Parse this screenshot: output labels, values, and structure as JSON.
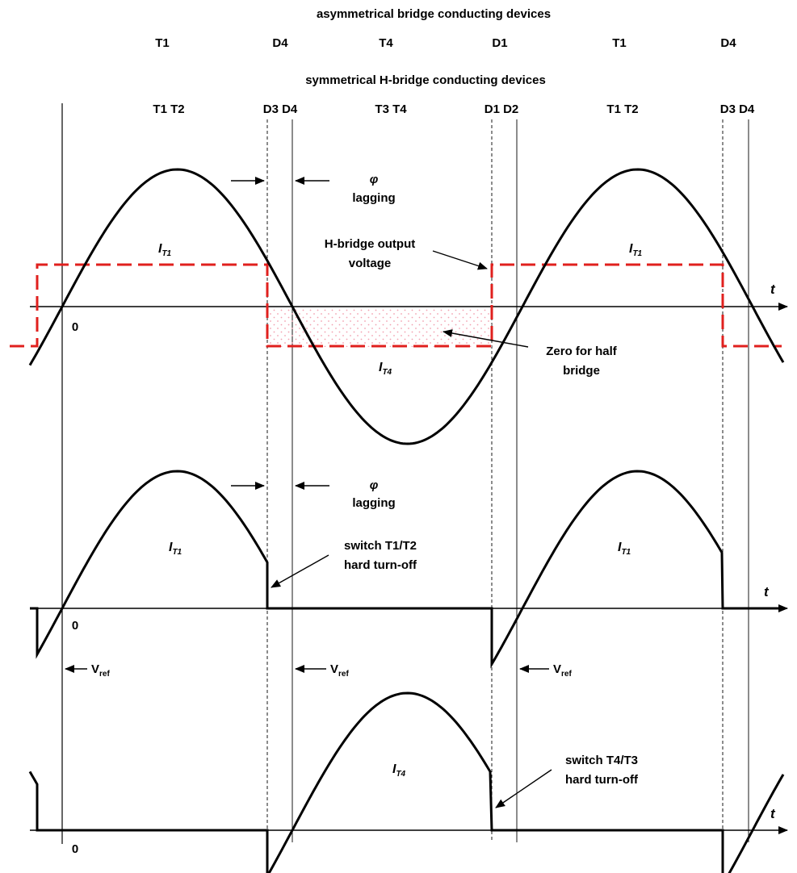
{
  "headers": {
    "asymmetrical_title": "asymmetrical bridge conducting devices",
    "symmetrical_title": "symmetrical H-bridge conducting devices",
    "asym_devices": [
      "T1",
      "D4",
      "T4",
      "D1",
      "T1",
      "D4"
    ],
    "sym_devices": [
      "T1 T2",
      "D3 D4",
      "T3 T4",
      "D1 D2",
      "T1 T2",
      "D3 D4"
    ]
  },
  "top_panel": {
    "phi": "φ",
    "lagging": "lagging",
    "current_pos": {
      "main": "I",
      "sub": "T1"
    },
    "current_neg": {
      "main": "I",
      "sub": "T4"
    },
    "output_voltage_line1": "H-bridge output",
    "output_voltage_line2": "voltage",
    "zero_half_line1": "Zero for half",
    "zero_half_line2": "bridge",
    "origin": "0",
    "axis": "t"
  },
  "middle_panel": {
    "phi": "φ",
    "lagging": "lagging",
    "current": {
      "main": "I",
      "sub": "T1"
    },
    "switch_line1": "switch T1/T2",
    "switch_line2": "hard turn-off",
    "origin": "0",
    "axis": "t"
  },
  "bottom_panel": {
    "vref": {
      "main": "V",
      "sub": "ref"
    },
    "current": {
      "main": "I",
      "sub": "T4"
    },
    "switch_line1": "switch T4/T3",
    "switch_line2": "hard turn-off",
    "origin": "0",
    "axis": "t"
  },
  "colors": {
    "voltage_dashed": "#e0201e",
    "shading_dots": "#f2a0b0",
    "ink": "#000000"
  }
}
